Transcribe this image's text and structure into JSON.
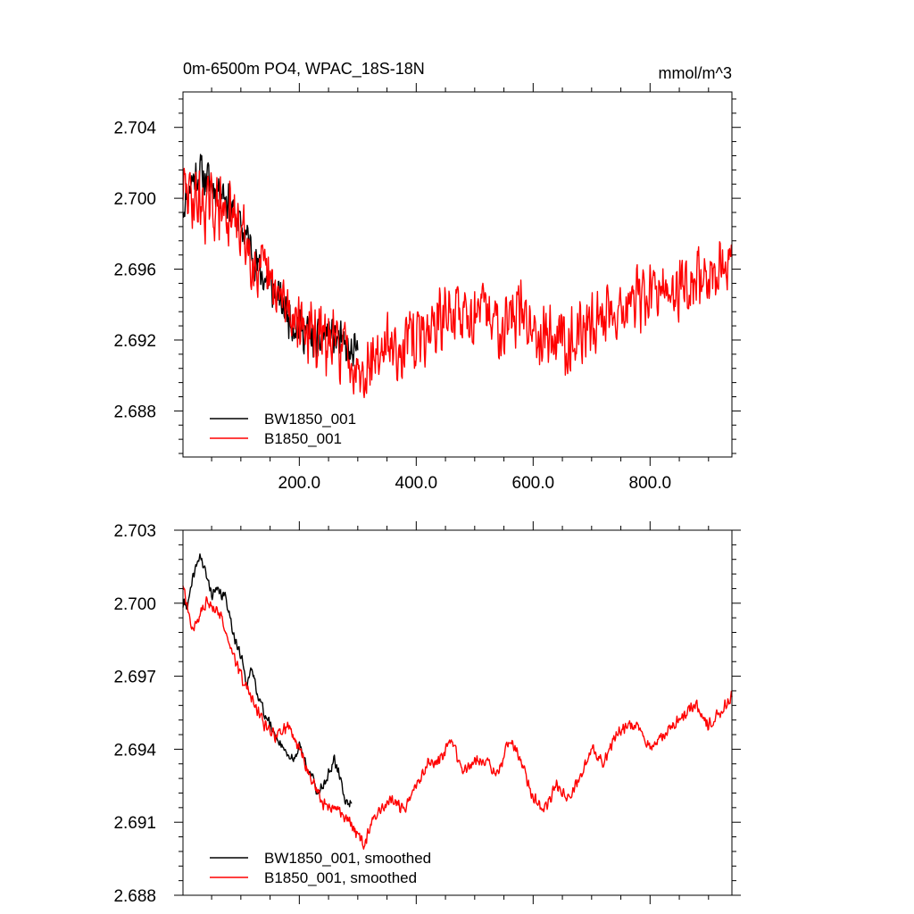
{
  "chart_data": [
    {
      "type": "line",
      "title": "0m-6500m PO4, WPAC_18S-18N",
      "units": "mmol/m^3",
      "xlim": [
        1,
        940
      ],
      "ylim": [
        2.6854,
        2.706
      ],
      "xticks": [
        200,
        400,
        600,
        800
      ],
      "xtick_labels": [
        "200.0",
        "400.0",
        "600.0",
        "800.0"
      ],
      "yticks": [
        2.688,
        2.692,
        2.696,
        2.7,
        2.704
      ],
      "ytick_labels": [
        "2.688",
        "2.692",
        "2.696",
        "2.700",
        "2.704"
      ],
      "legend": [
        "BW1850_001",
        "B1850_001"
      ],
      "series": [
        {
          "name": "BW1850_001",
          "color": "#000000",
          "x": [
            1,
            300
          ],
          "anchors": [
            [
              1,
              2.6995
            ],
            [
              15,
              2.701
            ],
            [
              30,
              2.7015
            ],
            [
              50,
              2.7008
            ],
            [
              70,
              2.7005
            ],
            [
              90,
              2.699
            ],
            [
              110,
              2.6978
            ],
            [
              130,
              2.696
            ],
            [
              150,
              2.695
            ],
            [
              170,
              2.694
            ],
            [
              190,
              2.693
            ],
            [
              210,
              2.6925
            ],
            [
              230,
              2.6918
            ],
            [
              250,
              2.6925
            ],
            [
              270,
              2.6918
            ],
            [
              290,
              2.691
            ],
            [
              300,
              2.6912
            ]
          ],
          "noise": 0.0014,
          "seed": 11
        },
        {
          "name": "B1850_001",
          "color": "#ff0000",
          "x": [
            1,
            940
          ],
          "anchors": [
            [
              1,
              2.7005
            ],
            [
              20,
              2.7
            ],
            [
              40,
              2.6995
            ],
            [
              60,
              2.6995
            ],
            [
              80,
              2.699
            ],
            [
              100,
              2.6982
            ],
            [
              130,
              2.696
            ],
            [
              160,
              2.6945
            ],
            [
              190,
              2.6935
            ],
            [
              220,
              2.6922
            ],
            [
              250,
              2.6918
            ],
            [
              280,
              2.6915
            ],
            [
              300,
              2.6905
            ],
            [
              320,
              2.6908
            ],
            [
              350,
              2.6915
            ],
            [
              380,
              2.6918
            ],
            [
              400,
              2.692
            ],
            [
              430,
              2.6928
            ],
            [
              460,
              2.6935
            ],
            [
              500,
              2.6935
            ],
            [
              540,
              2.693
            ],
            [
              580,
              2.6935
            ],
            [
              600,
              2.6928
            ],
            [
              640,
              2.6922
            ],
            [
              680,
              2.6922
            ],
            [
              720,
              2.6935
            ],
            [
              760,
              2.694
            ],
            [
              800,
              2.6945
            ],
            [
              840,
              2.6948
            ],
            [
              880,
              2.6955
            ],
            [
              910,
              2.6958
            ],
            [
              940,
              2.696
            ]
          ],
          "noise": 0.0022,
          "seed": 29
        }
      ]
    },
    {
      "type": "line",
      "title": "",
      "xlim": [
        1,
        940
      ],
      "ylim": [
        2.688,
        2.703
      ],
      "xticks": [
        200,
        400,
        600,
        800
      ],
      "xtick_labels": [
        "",
        "",
        "",
        ""
      ],
      "yticks": [
        2.688,
        2.691,
        2.694,
        2.697,
        2.7,
        2.703
      ],
      "ytick_labels": [
        "2.688",
        "2.691",
        "2.694",
        "2.697",
        "2.700",
        "2.703"
      ],
      "legend": [
        "BW1850_001, smoothed",
        "B1850_001, smoothed"
      ],
      "series": [
        {
          "name": "BW1850_001, smoothed",
          "color": "#000000",
          "x": [
            1,
            290
          ],
          "anchors": [
            [
              1,
              2.6999
            ],
            [
              10,
              2.7
            ],
            [
              20,
              2.7012
            ],
            [
              30,
              2.702
            ],
            [
              40,
              2.7012
            ],
            [
              50,
              2.7004
            ],
            [
              60,
              2.7005
            ],
            [
              75,
              2.7002
            ],
            [
              90,
              2.6985
            ],
            [
              100,
              2.6978
            ],
            [
              110,
              2.6968
            ],
            [
              120,
              2.6972
            ],
            [
              130,
              2.6962
            ],
            [
              140,
              2.6955
            ],
            [
              150,
              2.695
            ],
            [
              160,
              2.6945
            ],
            [
              170,
              2.6942
            ],
            [
              180,
              2.6938
            ],
            [
              190,
              2.6935
            ],
            [
              200,
              2.6942
            ],
            [
              210,
              2.6935
            ],
            [
              220,
              2.693
            ],
            [
              230,
              2.6922
            ],
            [
              240,
              2.6925
            ],
            [
              250,
              2.693
            ],
            [
              260,
              2.6935
            ],
            [
              270,
              2.6928
            ],
            [
              280,
              2.6918
            ],
            [
              290,
              2.6918
            ]
          ],
          "noise": 0.00028,
          "seed": 41
        },
        {
          "name": "B1850_001, smoothed",
          "color": "#ff0000",
          "x": [
            1,
            940
          ],
          "anchors": [
            [
              1,
              2.7008
            ],
            [
              10,
              2.6995
            ],
            [
              20,
              2.699
            ],
            [
              40,
              2.7
            ],
            [
              60,
              2.6998
            ],
            [
              80,
              2.6985
            ],
            [
              100,
              2.697
            ],
            [
              120,
              2.696
            ],
            [
              140,
              2.695
            ],
            [
              160,
              2.6945
            ],
            [
              180,
              2.695
            ],
            [
              200,
              2.694
            ],
            [
              220,
              2.6928
            ],
            [
              240,
              2.6918
            ],
            [
              260,
              2.6915
            ],
            [
              280,
              2.6912
            ],
            [
              300,
              2.6905
            ],
            [
              310,
              2.69
            ],
            [
              320,
              2.6908
            ],
            [
              340,
              2.6915
            ],
            [
              360,
              2.692
            ],
            [
              380,
              2.6915
            ],
            [
              400,
              2.6925
            ],
            [
              420,
              2.6935
            ],
            [
              440,
              2.6935
            ],
            [
              460,
              2.6945
            ],
            [
              480,
              2.693
            ],
            [
              500,
              2.6935
            ],
            [
              520,
              2.6935
            ],
            [
              540,
              2.693
            ],
            [
              560,
              2.6945
            ],
            [
              580,
              2.6935
            ],
            [
              600,
              2.692
            ],
            [
              620,
              2.6915
            ],
            [
              640,
              2.6925
            ],
            [
              660,
              2.692
            ],
            [
              680,
              2.6928
            ],
            [
              700,
              2.694
            ],
            [
              720,
              2.6935
            ],
            [
              740,
              2.6945
            ],
            [
              760,
              2.695
            ],
            [
              780,
              2.695
            ],
            [
              800,
              2.694
            ],
            [
              820,
              2.6945
            ],
            [
              840,
              2.695
            ],
            [
              860,
              2.6955
            ],
            [
              880,
              2.6958
            ],
            [
              900,
              2.695
            ],
            [
              920,
              2.6955
            ],
            [
              940,
              2.6962
            ]
          ],
          "noise": 0.0003,
          "seed": 57
        }
      ]
    }
  ]
}
